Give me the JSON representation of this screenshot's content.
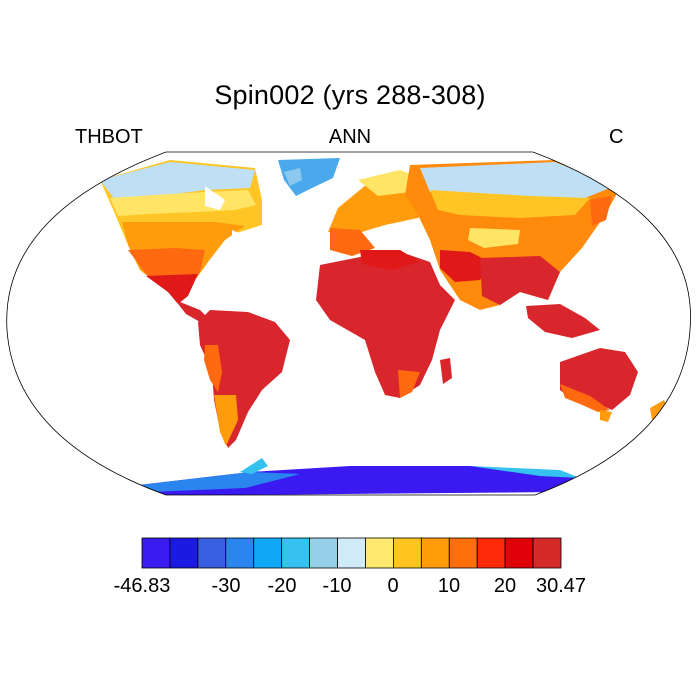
{
  "title": "Spin002 (yrs 288-308)",
  "left_string": "THBOT",
  "center_string": "ANN",
  "right_string": "C",
  "map": {
    "projection": "Robinson",
    "variable": "THBOT",
    "units": "C",
    "season": "ANN",
    "regions": [
      {
        "name": "Greenland",
        "color": "#4aa9ec"
      },
      {
        "name": "North America",
        "color": "#ffc020"
      },
      {
        "name": "South America",
        "color": "#d8262c"
      },
      {
        "name": "Europe",
        "color": "#ff9a10"
      },
      {
        "name": "Asia",
        "color": "#ff7010"
      },
      {
        "name": "Africa",
        "color": "#d8262c"
      },
      {
        "name": "Australia",
        "color": "#e01818"
      },
      {
        "name": "Antarctica",
        "color": "#3a1af0"
      }
    ]
  },
  "colorbar": {
    "colors": [
      "#3b1cf0",
      "#1a1ae0",
      "#3a5ee0",
      "#2a86ee",
      "#0ea8f5",
      "#36c2f0",
      "#96cfe8",
      "#d0eaf7",
      "#ffe870",
      "#ffc420",
      "#ff9c08",
      "#ff6e08",
      "#ff2a08",
      "#e00008",
      "#d42a2a"
    ],
    "tick_labels": [
      "-46.83",
      "-30",
      "-20",
      "-10",
      "0",
      "10",
      "20",
      "30.47"
    ]
  }
}
